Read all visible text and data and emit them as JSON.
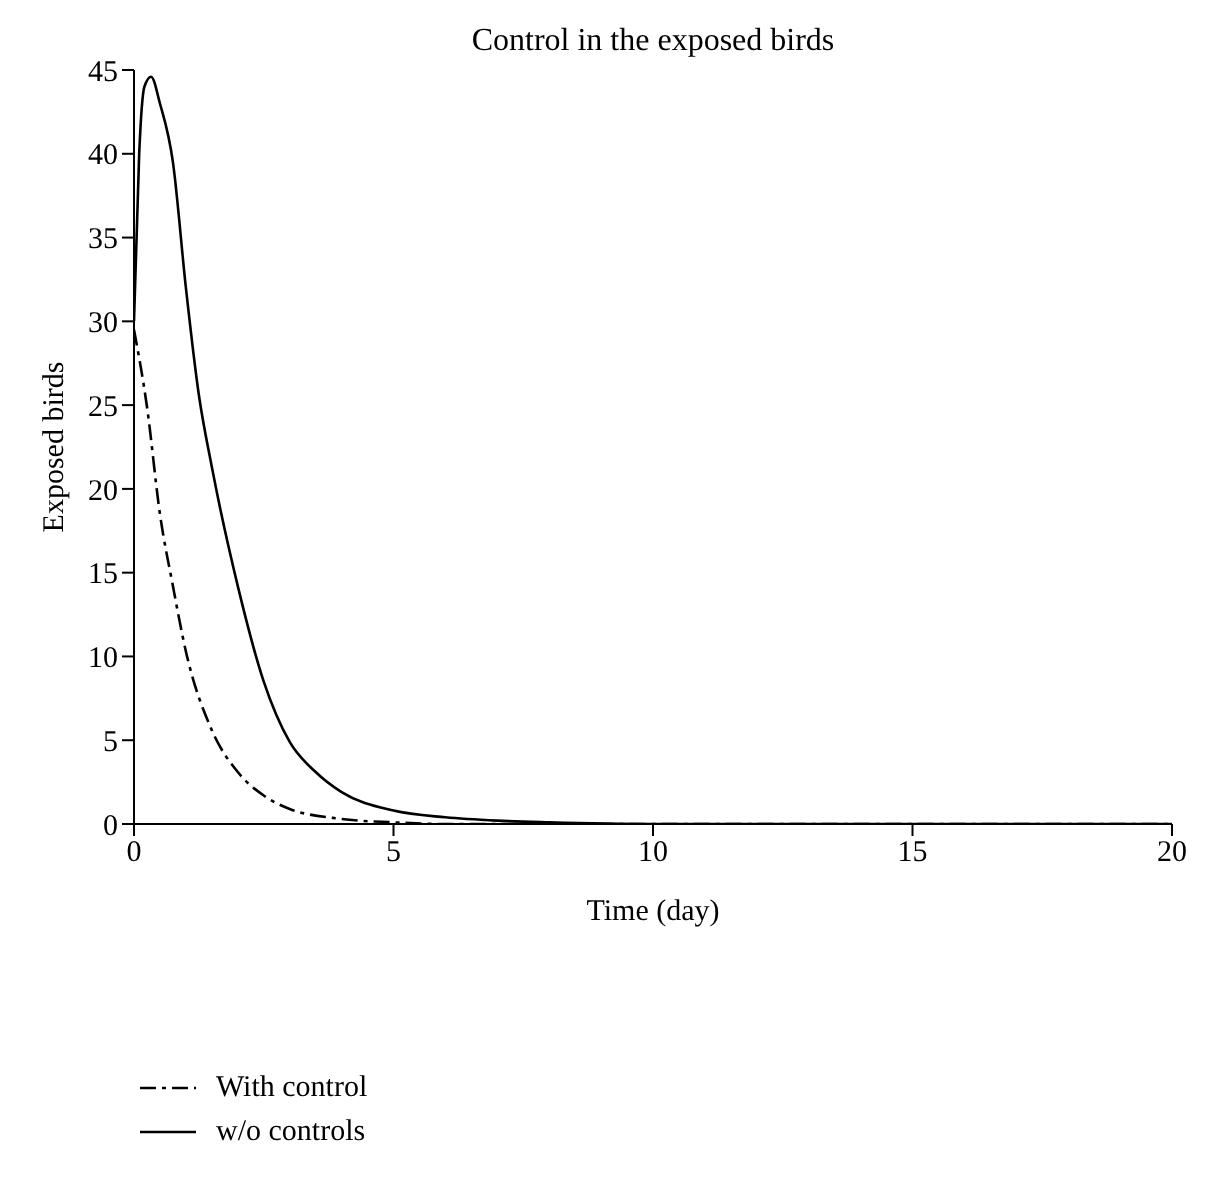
{
  "chart_data": {
    "type": "line",
    "title": "Control in the exposed birds",
    "xlabel": "Time (day)",
    "ylabel": "Exposed birds",
    "xlim": [
      0,
      20
    ],
    "xticks": [
      0,
      5,
      10,
      15,
      20
    ],
    "ylim": [
      0,
      45
    ],
    "yticks": [
      0,
      5,
      10,
      15,
      20,
      25,
      30,
      35,
      40,
      45
    ],
    "grid": false,
    "legend": "bottom left",
    "marker": "none",
    "series": [
      {
        "name": "With control",
        "color": "#000000",
        "line_style": "dashed",
        "x": [
          0,
          0.25,
          0.5,
          0.75,
          1,
          1.5,
          2,
          2.5,
          3,
          4,
          5,
          6,
          8,
          10,
          15,
          20
        ],
        "values": [
          29.5,
          24.9,
          18.5,
          14.2,
          10.3,
          5.6,
          3.1,
          1.7,
          0.9,
          0.3,
          0.1,
          0,
          0,
          0,
          0,
          0
        ]
      },
      {
        "name": "w/o controls",
        "color": "#000000",
        "line_style": "solid",
        "x": [
          0,
          0.1,
          0.2,
          0.33,
          0.5,
          0.75,
          1,
          1.25,
          1.5,
          2,
          2.5,
          3,
          3.5,
          4,
          5,
          6,
          7,
          8,
          10,
          15,
          20
        ],
        "values": [
          30,
          40,
          44,
          44.6,
          43,
          39.5,
          32,
          25.6,
          21.3,
          14.2,
          8.5,
          4.9,
          3.1,
          1.9,
          0.8,
          0.4,
          0.2,
          0.1,
          0,
          0,
          0
        ]
      }
    ]
  }
}
